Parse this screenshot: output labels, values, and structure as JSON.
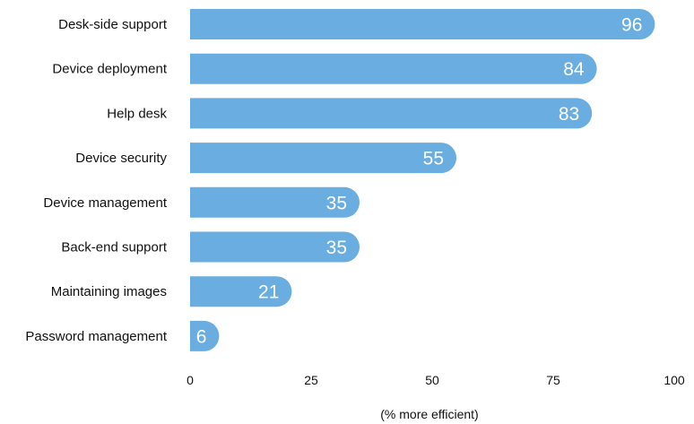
{
  "chart_data": {
    "type": "bar",
    "orientation": "horizontal",
    "categories": [
      "Desk-side support",
      "Device deployment",
      "Help desk",
      "Device security",
      "Device management",
      "Back-end support",
      "Maintaining images",
      "Password management"
    ],
    "values": [
      96,
      84,
      83,
      55,
      35,
      35,
      21,
      6
    ],
    "data_labels": [
      "96",
      "84",
      "83",
      "55",
      "35",
      "35",
      "21",
      "6"
    ],
    "xlabel": "(% more efficient)",
    "ylabel": "",
    "xlim": [
      0,
      100
    ],
    "xticks": [
      0,
      25,
      50,
      75,
      100
    ],
    "xtick_labels": [
      "0",
      "25",
      "50",
      "75",
      "100"
    ],
    "grid": false,
    "legend": "none",
    "bar_color": "#6aade0",
    "label_color": "#ffffff"
  }
}
